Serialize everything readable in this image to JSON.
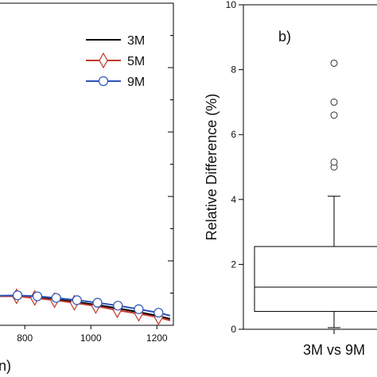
{
  "chart_data": [
    {
      "type": "line",
      "panel": "a",
      "xlabel_visible_fragment": "n)",
      "xlim": [
        720,
        1250
      ],
      "x_ticks": [
        800,
        1000,
        1200
      ],
      "x_tick_labels": [
        "800",
        "1000",
        "1200"
      ],
      "ylim": [
        0,
        10
      ],
      "legend": {
        "placement": "top-right"
      },
      "grid": false,
      "series": [
        {
          "name": "3M",
          "color": "#000000",
          "marker": "none",
          "x": [
            720,
            780,
            840,
            900,
            960,
            1020,
            1080,
            1140,
            1200,
            1240
          ],
          "y": [
            0.9,
            0.9,
            0.86,
            0.8,
            0.72,
            0.63,
            0.53,
            0.42,
            0.3,
            0.2
          ]
        },
        {
          "name": "5M",
          "color": "#c0392b",
          "marker": "diamond",
          "x": [
            720,
            775,
            830,
            890,
            950,
            1015,
            1080,
            1145,
            1205,
            1240
          ],
          "y": [
            0.9,
            0.9,
            0.85,
            0.78,
            0.7,
            0.6,
            0.47,
            0.36,
            0.25,
            0.15
          ]
        },
        {
          "name": "9M",
          "color": "#2f53b5",
          "marker": "circle",
          "x": [
            720,
            778,
            838,
            895,
            958,
            1020,
            1082,
            1145,
            1205,
            1240
          ],
          "y": [
            0.92,
            0.93,
            0.9,
            0.85,
            0.78,
            0.7,
            0.61,
            0.5,
            0.39,
            0.3
          ]
        }
      ]
    },
    {
      "type": "box",
      "panel": "b",
      "panel_tag": "b)",
      "ylabel": "Relative Difference (%)",
      "ylim": [
        0,
        10
      ],
      "y_ticks": [
        0,
        2,
        4,
        6,
        8,
        10
      ],
      "y_tick_labels": [
        "0",
        "2",
        "4",
        "6",
        "8",
        "10"
      ],
      "categories": [
        "3M vs 9M"
      ],
      "grid": false,
      "box": {
        "whisker_low": 0.05,
        "q1": 0.55,
        "median": 1.3,
        "q3": 2.55,
        "whisker_high": 4.1,
        "outliers": [
          5.0,
          5.15,
          6.6,
          7.0,
          8.2
        ]
      }
    }
  ]
}
